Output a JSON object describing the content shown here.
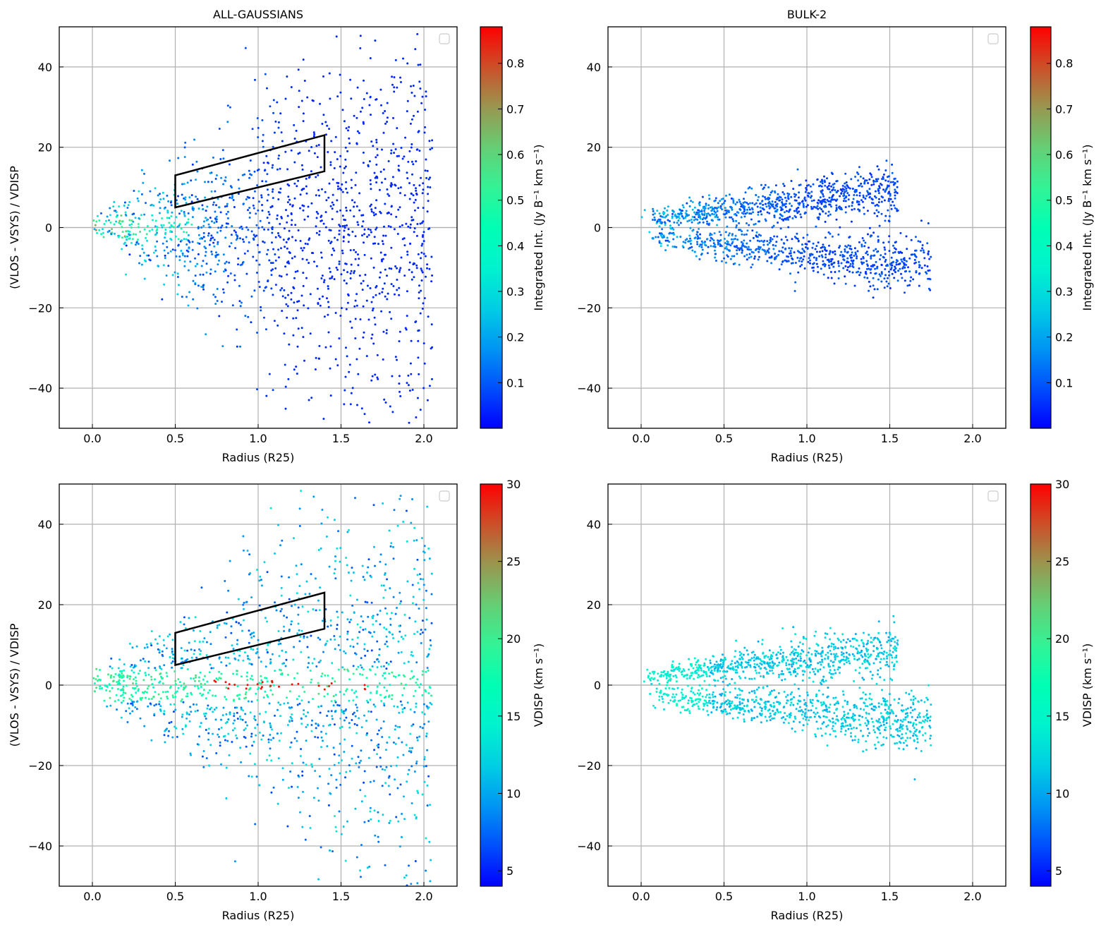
{
  "figure": {
    "colorbar_int_label": "Integrated Int. (Jy B⁻¹ km s⁻¹)",
    "colorbar_vdisp_label": "VDISP (km s⁻¹)"
  },
  "chart_data": [
    {
      "type": "scatter",
      "panel": "top-left",
      "title": "ALL-GAUSSIANS",
      "xlabel": "Radius (R25)",
      "ylabel": "(VLOS - VSYS) / VDISP",
      "xlim": [
        -0.2,
        2.2
      ],
      "ylim": [
        -50,
        50
      ],
      "xticks": [
        "0.0",
        "0.5",
        "1.0",
        "1.5",
        "2.0"
      ],
      "yticks": [
        "−40",
        "−20",
        "0",
        "20",
        "40"
      ],
      "grid": true,
      "legend": "top-right (empty)",
      "color_by": "Integrated Int.",
      "colorbar": {
        "label": "Integrated Int. (Jy B⁻¹ km s⁻¹)",
        "range": [
          0.0,
          0.88
        ],
        "ticks": [
          "0.1",
          "0.2",
          "0.3",
          "0.4",
          "0.5",
          "0.6",
          "0.7",
          "0.8"
        ],
        "colormap": "rainbow"
      },
      "distribution": "all-gaussians",
      "selection_polygon": [
        [
          0.5,
          5
        ],
        [
          0.5,
          13
        ],
        [
          1.4,
          23
        ],
        [
          1.4,
          14
        ]
      ]
    },
    {
      "type": "scatter",
      "panel": "top-right",
      "title": "BULK-2",
      "xlabel": "Radius (R25)",
      "ylabel": "",
      "xlim": [
        -0.2,
        2.2
      ],
      "ylim": [
        -50,
        50
      ],
      "xticks": [
        "0.0",
        "0.5",
        "1.0",
        "1.5",
        "2.0"
      ],
      "yticks": [
        "−40",
        "−20",
        "0",
        "20",
        "40"
      ],
      "grid": true,
      "legend": "top-right (empty)",
      "color_by": "Integrated Int.",
      "colorbar": {
        "label": "Integrated Int. (Jy B⁻¹ km s⁻¹)",
        "range": [
          0.0,
          0.88
        ],
        "ticks": [
          "0.1",
          "0.2",
          "0.3",
          "0.4",
          "0.5",
          "0.6",
          "0.7",
          "0.8"
        ],
        "colormap": "rainbow"
      },
      "distribution": "bulk-2",
      "selection_polygon": null
    },
    {
      "type": "scatter",
      "panel": "bottom-left",
      "title": "",
      "xlabel": "Radius (R25)",
      "ylabel": "(VLOS - VSYS) / VDISP",
      "xlim": [
        -0.2,
        2.2
      ],
      "ylim": [
        -50,
        50
      ],
      "xticks": [
        "0.0",
        "0.5",
        "1.0",
        "1.5",
        "2.0"
      ],
      "yticks": [
        "−40",
        "−20",
        "0",
        "20",
        "40"
      ],
      "grid": true,
      "legend": "top-right (empty)",
      "color_by": "VDISP",
      "colorbar": {
        "label": "VDISP (km s⁻¹)",
        "range": [
          4,
          30
        ],
        "ticks": [
          "5",
          "10",
          "15",
          "20",
          "25",
          "30"
        ],
        "colormap": "rainbow"
      },
      "distribution": "all-gaussians",
      "selection_polygon": [
        [
          0.5,
          5
        ],
        [
          0.5,
          13
        ],
        [
          1.4,
          23
        ],
        [
          1.4,
          14
        ]
      ]
    },
    {
      "type": "scatter",
      "panel": "bottom-right",
      "title": "",
      "xlabel": "Radius (R25)",
      "ylabel": "",
      "xlim": [
        -0.2,
        2.2
      ],
      "ylim": [
        -50,
        50
      ],
      "xticks": [
        "0.0",
        "0.5",
        "1.0",
        "1.5",
        "2.0"
      ],
      "yticks": [
        "−40",
        "−20",
        "0",
        "20",
        "40"
      ],
      "grid": true,
      "legend": "top-right (empty)",
      "color_by": "VDISP",
      "colorbar": {
        "label": "VDISP (km s⁻¹)",
        "range": [
          4,
          30
        ],
        "ticks": [
          "5",
          "10",
          "15",
          "20",
          "25",
          "30"
        ],
        "colormap": "rainbow"
      },
      "distribution": "bulk-2",
      "selection_polygon": null
    }
  ]
}
